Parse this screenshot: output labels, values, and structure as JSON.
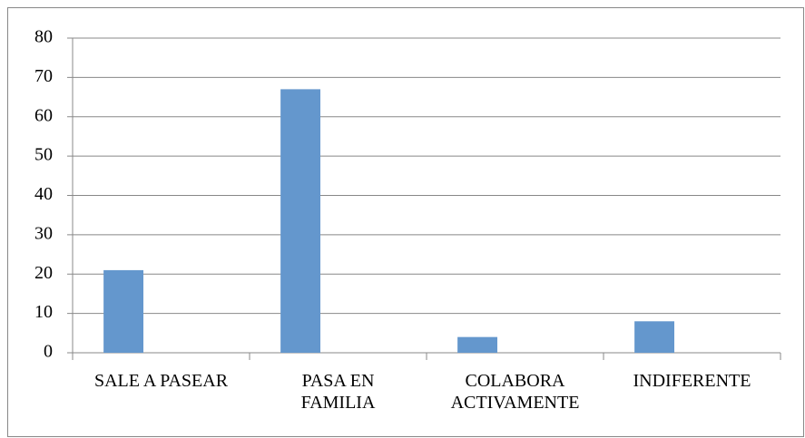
{
  "chart_data": {
    "type": "bar",
    "categories": [
      "SALE A PASEAR",
      "PASA EN\nFAMILIA",
      "COLABORA\nACTIVAMENTE",
      "INDIFERENTE"
    ],
    "values": [
      21,
      67,
      4,
      8
    ],
    "color": "#6497cd",
    "ylim": [
      0,
      80
    ],
    "yticks": [
      0,
      10,
      20,
      30,
      40,
      50,
      60,
      70,
      80
    ],
    "grid": true
  }
}
